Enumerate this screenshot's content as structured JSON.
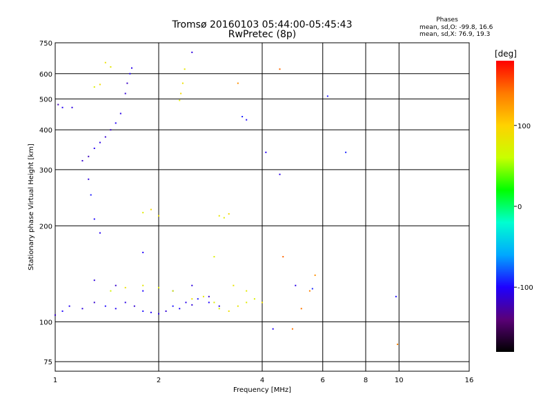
{
  "chart_data": {
    "type": "scatter",
    "title": "Tromsø 20160103 05:44:00-05:45:43",
    "subtitle": "RwPretec (8p)",
    "xlabel": "Frequency [MHz]",
    "ylabel": "Stationary phase Virtual Height [km]",
    "x_scale": "log",
    "y_scale": "log",
    "xlim": [
      1,
      16
    ],
    "ylim": [
      70,
      750
    ],
    "x_ticks": [
      1,
      2,
      4,
      6,
      8,
      10,
      16
    ],
    "y_ticks": [
      75,
      100,
      200,
      300,
      400,
      500,
      600,
      750
    ],
    "grid": true,
    "stats": {
      "heading": "Phases",
      "line_o": "mean, sd,O: -99.8, 16.6",
      "line_x": "mean, sd,X:  76.9, 19.3"
    },
    "colorbar": {
      "label": "[deg]",
      "range": [
        -180,
        180
      ],
      "ticks": [
        -100,
        0,
        100
      ],
      "colors": [
        "#000000",
        "#5a0077",
        "#1e00ff",
        "#00a8ff",
        "#00ffd0",
        "#00ff00",
        "#c8ff00",
        "#ffd200",
        "#ff7a00",
        "#ff0000"
      ]
    },
    "clusters": [
      {
        "name": "o-trace-upper",
        "phase": -110,
        "points": [
          [
            1.02,
            480
          ],
          [
            1.05,
            470
          ],
          [
            1.12,
            470
          ],
          [
            1.2,
            320
          ],
          [
            1.25,
            330
          ],
          [
            1.3,
            350
          ],
          [
            1.35,
            365
          ],
          [
            1.4,
            380
          ],
          [
            1.45,
            400
          ],
          [
            1.5,
            420
          ],
          [
            1.55,
            450
          ],
          [
            1.6,
            520
          ],
          [
            1.62,
            560
          ],
          [
            1.65,
            600
          ],
          [
            1.67,
            625
          ]
        ]
      },
      {
        "name": "o-trace-lower",
        "phase": -105,
        "points": [
          [
            1.0,
            105
          ],
          [
            1.05,
            108
          ],
          [
            1.1,
            112
          ],
          [
            1.2,
            110
          ],
          [
            1.3,
            115
          ],
          [
            1.4,
            112
          ],
          [
            1.5,
            110
          ],
          [
            1.6,
            115
          ],
          [
            1.7,
            112
          ],
          [
            1.8,
            108
          ],
          [
            1.9,
            107
          ],
          [
            2.0,
            106
          ],
          [
            2.1,
            108
          ],
          [
            2.2,
            112
          ],
          [
            2.3,
            110
          ],
          [
            2.4,
            115
          ],
          [
            2.5,
            113
          ],
          [
            2.6,
            118
          ],
          [
            2.8,
            115
          ],
          [
            3.0,
            112
          ],
          [
            1.3,
            135
          ],
          [
            1.5,
            130
          ],
          [
            1.8,
            125
          ],
          [
            2.2,
            125
          ],
          [
            2.5,
            130
          ],
          [
            2.8,
            120
          ]
        ]
      },
      {
        "name": "x-trace-lower",
        "phase": 80,
        "points": [
          [
            1.45,
            125
          ],
          [
            1.6,
            128
          ],
          [
            1.8,
            130
          ],
          [
            2.0,
            128
          ],
          [
            2.2,
            125
          ],
          [
            2.5,
            118
          ],
          [
            2.7,
            120
          ],
          [
            2.9,
            115
          ],
          [
            3.0,
            110
          ],
          [
            3.2,
            108
          ],
          [
            3.4,
            112
          ],
          [
            3.6,
            115
          ],
          [
            3.8,
            118
          ],
          [
            4.0,
            115
          ],
          [
            3.3,
            130
          ],
          [
            3.6,
            125
          ],
          [
            2.9,
            160
          ]
        ]
      },
      {
        "name": "x-trace-upper",
        "phase": 85,
        "points": [
          [
            1.3,
            545
          ],
          [
            1.35,
            555
          ],
          [
            1.4,
            650
          ],
          [
            1.45,
            630
          ],
          [
            2.3,
            495
          ],
          [
            2.32,
            520
          ],
          [
            2.35,
            560
          ],
          [
            2.38,
            620
          ],
          [
            1.8,
            220
          ],
          [
            1.9,
            225
          ],
          [
            2.0,
            215
          ],
          [
            3.0,
            215
          ],
          [
            3.1,
            212
          ],
          [
            3.2,
            218
          ]
        ]
      },
      {
        "name": "scattered",
        "phase": -100,
        "points": [
          [
            1.25,
            280
          ],
          [
            1.27,
            250
          ],
          [
            1.3,
            210
          ],
          [
            1.35,
            190
          ],
          [
            2.5,
            700
          ],
          [
            3.5,
            440
          ],
          [
            3.6,
            430
          ],
          [
            4.1,
            340
          ],
          [
            4.5,
            290
          ],
          [
            7.0,
            340
          ],
          [
            9.8,
            120
          ],
          [
            4.3,
            95
          ],
          [
            5.0,
            130
          ],
          [
            5.6,
            127
          ],
          [
            6.2,
            510
          ],
          [
            1.8,
            165
          ]
        ]
      },
      {
        "name": "scattered-warm",
        "phase": 140,
        "points": [
          [
            3.4,
            560
          ],
          [
            4.5,
            620
          ],
          [
            5.2,
            110
          ],
          [
            5.5,
            125
          ],
          [
            5.7,
            140
          ],
          [
            4.6,
            160
          ],
          [
            4.9,
            95
          ],
          [
            9.9,
            85
          ]
        ]
      }
    ]
  }
}
